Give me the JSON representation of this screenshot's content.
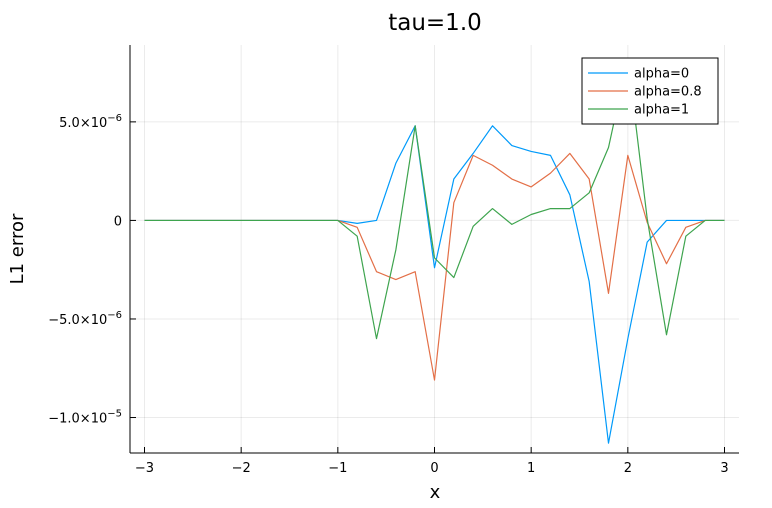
{
  "chart_data": {
    "type": "line",
    "title": "tau=1.0",
    "xlabel": "x",
    "ylabel": "L1 error",
    "xlim": [
      -3.15,
      3.15
    ],
    "ylim": [
      -1.18e-05,
      8.9e-06
    ],
    "grid": true,
    "legend_position": "top-right",
    "x_ticks": [
      {
        "value": -3,
        "label": "−3"
      },
      {
        "value": -2,
        "label": "−2"
      },
      {
        "value": -1,
        "label": "−1"
      },
      {
        "value": 0,
        "label": "0"
      },
      {
        "value": 1,
        "label": "1"
      },
      {
        "value": 2,
        "label": "2"
      },
      {
        "value": 3,
        "label": "3"
      }
    ],
    "y_ticks": [
      {
        "value": 5e-06,
        "mant": "5.0×10",
        "exp": "−6"
      },
      {
        "value": 0,
        "mant": "0",
        "exp": ""
      },
      {
        "value": -5e-06,
        "mant": "−5.0×10",
        "exp": "−6"
      },
      {
        "value": -1e-05,
        "mant": "−1.0×10",
        "exp": "−5"
      }
    ],
    "x": [
      -3.0,
      -2.8,
      -2.6,
      -2.4,
      -2.2,
      -2.0,
      -1.8,
      -1.6,
      -1.4,
      -1.2,
      -1.0,
      -0.8,
      -0.6,
      -0.4,
      -0.2,
      0.0,
      0.2,
      0.4,
      0.6,
      0.8,
      1.0,
      1.2,
      1.4,
      1.6,
      1.8,
      2.0,
      2.2,
      2.4,
      2.6,
      2.8,
      3.0
    ],
    "series": [
      {
        "name": "alpha=0",
        "color": "#009AFA",
        "values": [
          0,
          0,
          0,
          0,
          0,
          0,
          0,
          0,
          0,
          0,
          0,
          -1.5e-07,
          0,
          2.9e-06,
          4.8e-06,
          -2.4e-06,
          2.1e-06,
          3.4e-06,
          4.8e-06,
          3.8e-06,
          3.5e-06,
          3.3e-06,
          1.3e-06,
          -3.1e-06,
          -1.13e-05,
          -6e-06,
          -1.1e-06,
          0,
          0,
          0,
          0
        ]
      },
      {
        "name": "alpha=0.8",
        "color": "#E36F47",
        "values": [
          0,
          0,
          0,
          0,
          0,
          0,
          0,
          0,
          0,
          0,
          0,
          -3.5e-07,
          -2.6e-06,
          -3e-06,
          -2.6e-06,
          -8.1e-06,
          9e-07,
          3.3e-06,
          2.8e-06,
          2.1e-06,
          1.7e-06,
          2.4e-06,
          3.4e-06,
          2.1e-06,
          -3.7e-06,
          3.3e-06,
          -1e-07,
          -2.2e-06,
          -3.5e-07,
          0,
          0
        ]
      },
      {
        "name": "alpha=1",
        "color": "#3EA44E",
        "values": [
          0,
          0,
          0,
          0,
          0,
          0,
          0,
          0,
          0,
          0,
          0,
          -8e-07,
          -6e-06,
          -1.5e-06,
          4.8e-06,
          -1.9e-06,
          -2.9e-06,
          -3e-07,
          6e-07,
          -2e-07,
          3e-07,
          6e-07,
          6e-07,
          1.4e-06,
          3.7e-06,
          8.2e-06,
          1e-07,
          -5.8e-06,
          -8e-07,
          0,
          0
        ]
      }
    ]
  }
}
